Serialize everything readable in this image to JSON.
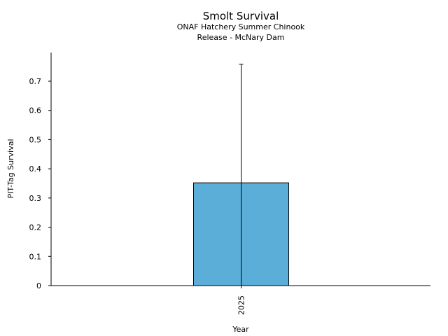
{
  "chart_data": {
    "type": "bar",
    "title": "Smolt Survival",
    "subtitle_lines": [
      "ONAF Hatchery Summer Chinook",
      "Release - McNary Dam"
    ],
    "xlabel": "Year",
    "ylabel": "PIT-Tag Survival",
    "categories": [
      "2025"
    ],
    "values": [
      0.352
    ],
    "error_upper": [
      0.758
    ],
    "error_lower": [
      0.0
    ],
    "ylim": [
      0,
      0.8
    ],
    "yticks": [
      "0",
      "0.1",
      "0.2",
      "0.3",
      "0.4",
      "0.5",
      "0.6",
      "0.7"
    ],
    "bar_color": "#5aaed7",
    "edge_color": "#000000",
    "grid": false,
    "legend": "none"
  }
}
